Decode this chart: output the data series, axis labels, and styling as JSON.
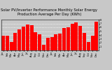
{
  "title": "Solar PV/Inverter Performance Monthly Solar Energy Production Average Per Day (KWh)",
  "months": [
    "Jan",
    "Feb",
    "Mar",
    "Apr",
    "May",
    "Jun",
    "Jul",
    "Aug",
    "Sep",
    "Oct",
    "Nov",
    "Dec",
    "Jan",
    "Feb",
    "Mar",
    "Apr",
    "May",
    "Jun",
    "Jul",
    "Aug",
    "Sep",
    "Oct",
    "Nov",
    "Dec"
  ],
  "values": [
    3.8,
    3.9,
    2.2,
    4.5,
    5.5,
    6.2,
    6.8,
    6.5,
    4.8,
    4.2,
    1.5,
    3.2,
    3.5,
    4.1,
    4.3,
    5.8,
    6.0,
    6.9,
    7.2,
    6.3,
    4.5,
    2.2,
    3.8,
    7.5
  ],
  "bar_color": "#ff0000",
  "background_color": "#c8c8c8",
  "plot_bg_color": "#c8c8c8",
  "grid_color": "#ffffff",
  "ylim": [
    0,
    8
  ],
  "yticks": [
    1,
    2,
    3,
    4,
    5,
    6,
    7,
    8
  ],
  "title_fontsize": 3.8,
  "tick_fontsize": 2.5
}
